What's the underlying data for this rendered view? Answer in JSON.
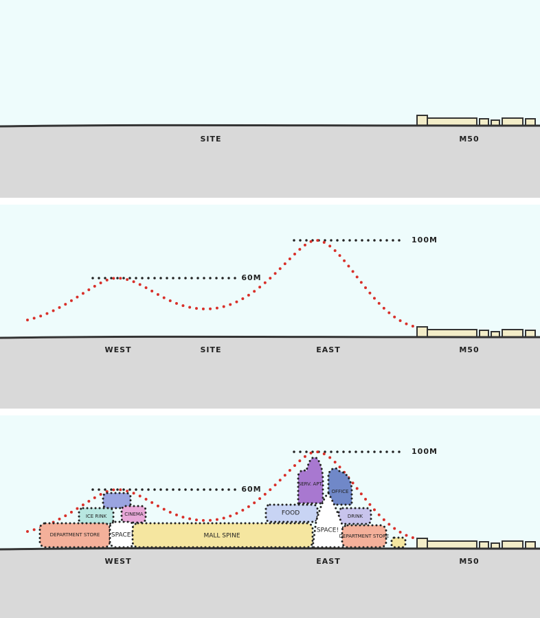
{
  "panels": [
    {
      "labels": {
        "site": "SITE",
        "m50": "M50"
      }
    },
    {
      "heights": {
        "high": "100M",
        "low": "60M"
      },
      "labels": {
        "west": "WEST",
        "site": "SITE",
        "east": "EAST",
        "m50": "M50"
      }
    },
    {
      "heights": {
        "high": "100M",
        "low": "60M"
      },
      "labels": {
        "west": "WEST",
        "east": "EAST",
        "m50": "M50"
      },
      "blocks": {
        "dept_west": "DEPARTMENT STORE",
        "ice_rink": "ICE RINK",
        "cinema": "CINEMA",
        "space_west": "SPACE!",
        "mall_spine": "MALL SPINE",
        "food": "FOOD",
        "serv_apt": "SERV. APT.",
        "office": "OFFICE",
        "drink": "DRINK",
        "space_east": "SPACE!",
        "dept_east": "DEPARTMENT STORE"
      }
    }
  ]
}
